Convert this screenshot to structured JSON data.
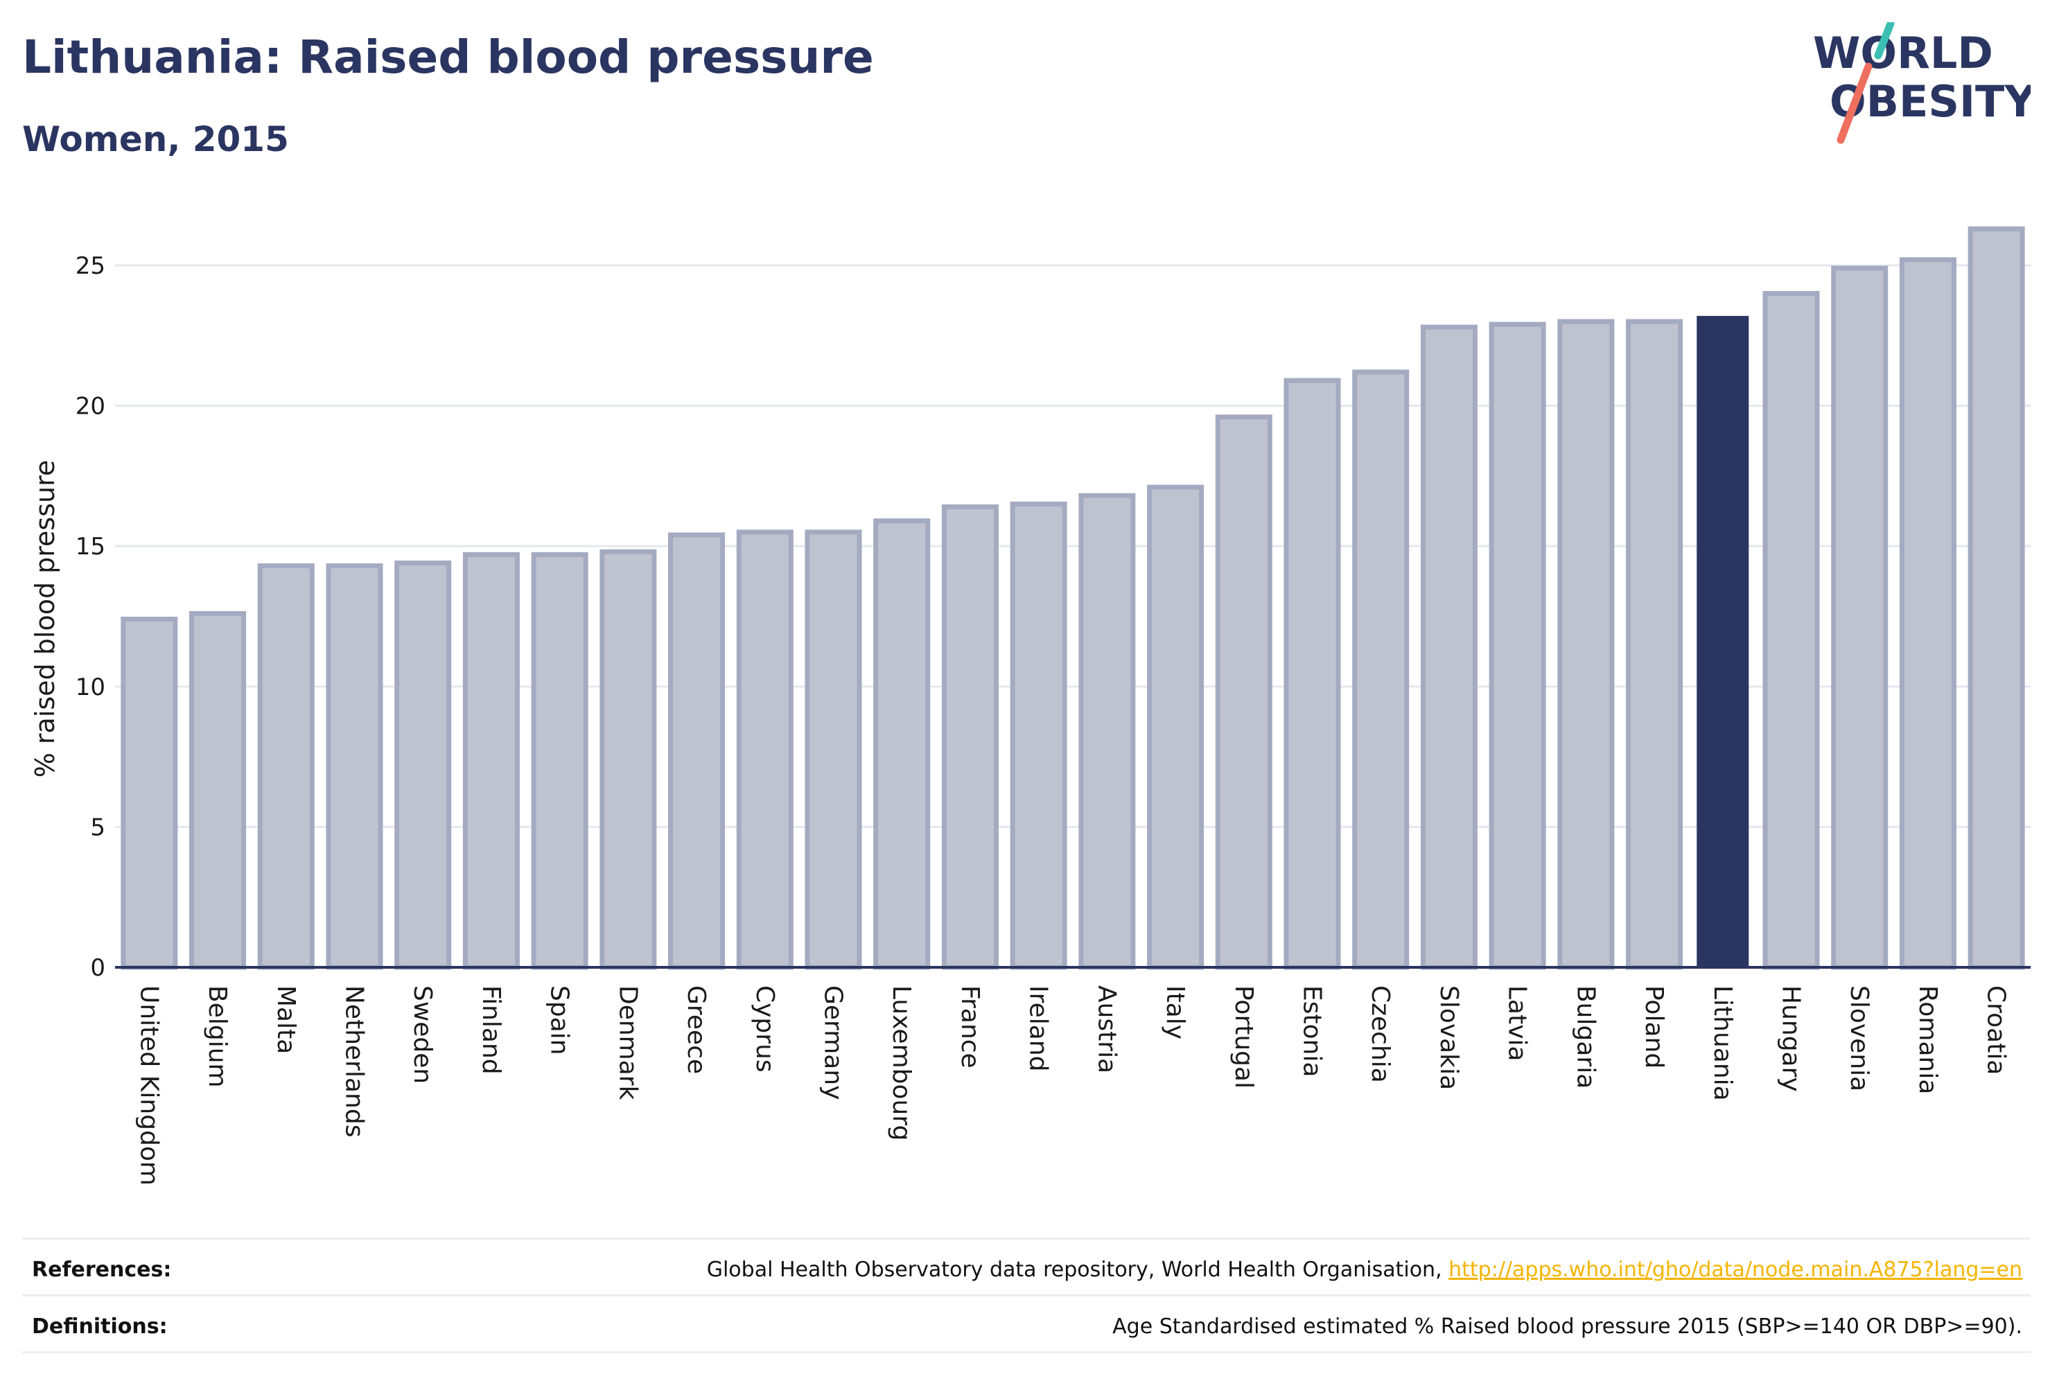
{
  "header": {
    "title": "Lithuania: Raised blood pressure",
    "subtitle": "Women, 2015"
  },
  "logo": {
    "line1": "WORLD",
    "line2": "OBESITY"
  },
  "chart_data": {
    "type": "bar",
    "categories": [
      "United Kingdom",
      "Belgium",
      "Malta",
      "Netherlands",
      "Sweden",
      "Finland",
      "Spain",
      "Denmark",
      "Greece",
      "Cyprus",
      "Germany",
      "Luxembourg",
      "France",
      "Ireland",
      "Austria",
      "Italy",
      "Portugal",
      "Estonia",
      "Czechia",
      "Slovakia",
      "Latvia",
      "Bulgaria",
      "Poland",
      "Lithuania",
      "Hungary",
      "Slovenia",
      "Romania",
      "Croatia"
    ],
    "values": [
      12.4,
      12.6,
      14.3,
      14.3,
      14.4,
      14.7,
      14.7,
      14.8,
      15.4,
      15.5,
      15.5,
      15.9,
      16.4,
      16.5,
      16.8,
      17.1,
      19.6,
      20.9,
      21.2,
      22.8,
      22.9,
      23.0,
      23.0,
      23.2,
      24.0,
      24.9,
      25.2,
      26.3
    ],
    "highlight": "Lithuania",
    "title": "Lithuania: Raised blood pressure",
    "subtitle": "Women, 2015",
    "xlabel": "",
    "ylabel": "% raised blood pressure",
    "ylim": [
      0,
      26.8
    ],
    "yticks": [
      0,
      5,
      10,
      15,
      20,
      25
    ],
    "grid": true,
    "colors": {
      "bar_fill": "#bfc3d0",
      "bar_stroke": "#a4aac0",
      "highlight_fill": "#2b3561",
      "axis": "#2b3561",
      "grid": "#e6e8ef",
      "text": "#1a1a1a"
    }
  },
  "footer": {
    "references_label": "References:",
    "references_text": "Global Health Observatory data repository, World Health Organisation, ",
    "references_link": "http://apps.who.int/gho/data/node.main.A875?lang=en",
    "definitions_label": "Definitions:",
    "definitions_text": "Age Standardised estimated % Raised blood pressure 2015 (SBP>=140 OR DBP>=90)."
  }
}
